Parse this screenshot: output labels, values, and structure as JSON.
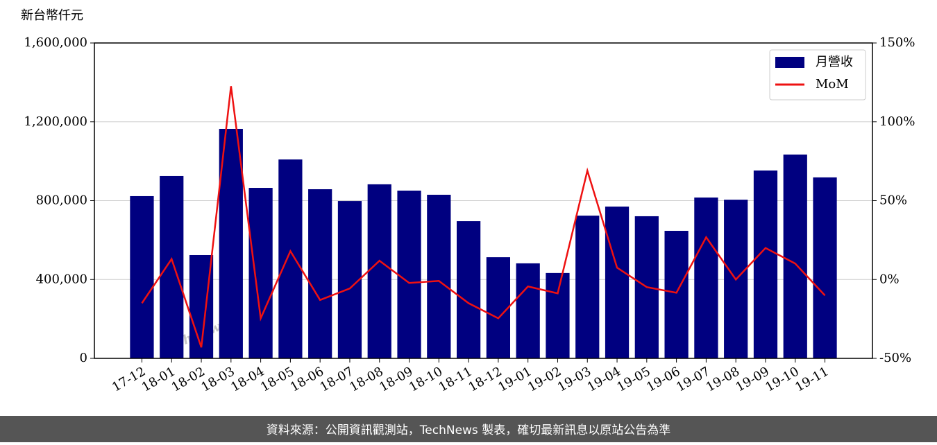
{
  "chart_data": {
    "type": "bar",
    "y_label": "新台幣仟元",
    "watermark": "TechNews",
    "footer": "資料來源：公開資訊觀測站，TechNews 製表，確切最新訊息以原站公告為準",
    "categories": [
      "17-12",
      "18-01",
      "18-02",
      "18-03",
      "18-04",
      "18-05",
      "18-06",
      "18-07",
      "18-08",
      "18-09",
      "18-10",
      "18-11",
      "18-12",
      "19-01",
      "19-02",
      "19-03",
      "19-04",
      "19-05",
      "19-06",
      "19-07",
      "19-08",
      "19-09",
      "19-10",
      "19-11"
    ],
    "series": [
      {
        "name": "月營收",
        "type": "bar",
        "color": "#000080",
        "values": [
          823000,
          925000,
          524000,
          1164000,
          865000,
          1009000,
          858000,
          798000,
          883000,
          851000,
          830000,
          696000,
          513000,
          482000,
          433000,
          724000,
          770000,
          721000,
          647000,
          816000,
          805000,
          953000,
          1034000,
          918000
        ]
      },
      {
        "name": "MoM",
        "type": "line",
        "axis": "y2",
        "color": "#ee1111",
        "values": [
          -15,
          13,
          -43,
          122.6,
          -24.6,
          18,
          -13,
          -5.7,
          11.9,
          -2.2,
          -0.9,
          -15,
          -24.6,
          -4.4,
          -8.8,
          69,
          7.5,
          -4.8,
          -8.4,
          26.8,
          0,
          20,
          10.1,
          -10.1
        ]
      }
    ],
    "ylim": [
      0,
      1600000
    ],
    "yticks": [
      0,
      {
        "value": 400000,
        "label": "400,000"
      },
      {
        "value": 800000,
        "label": "800,000"
      },
      {
        "value": 1200000,
        "label": "1,200,000"
      },
      {
        "value": 1600000,
        "label": "1,600,000"
      }
    ],
    "y2lim": [
      -50,
      150
    ],
    "y2ticks": [
      {
        "value": -50,
        "label": "-50%"
      },
      {
        "value": 0,
        "label": "0%"
      },
      {
        "value": 50,
        "label": "50%"
      },
      {
        "value": 100,
        "label": "100%"
      },
      {
        "value": 150,
        "label": "150%"
      }
    ],
    "grid": true,
    "legend": "upper right"
  }
}
